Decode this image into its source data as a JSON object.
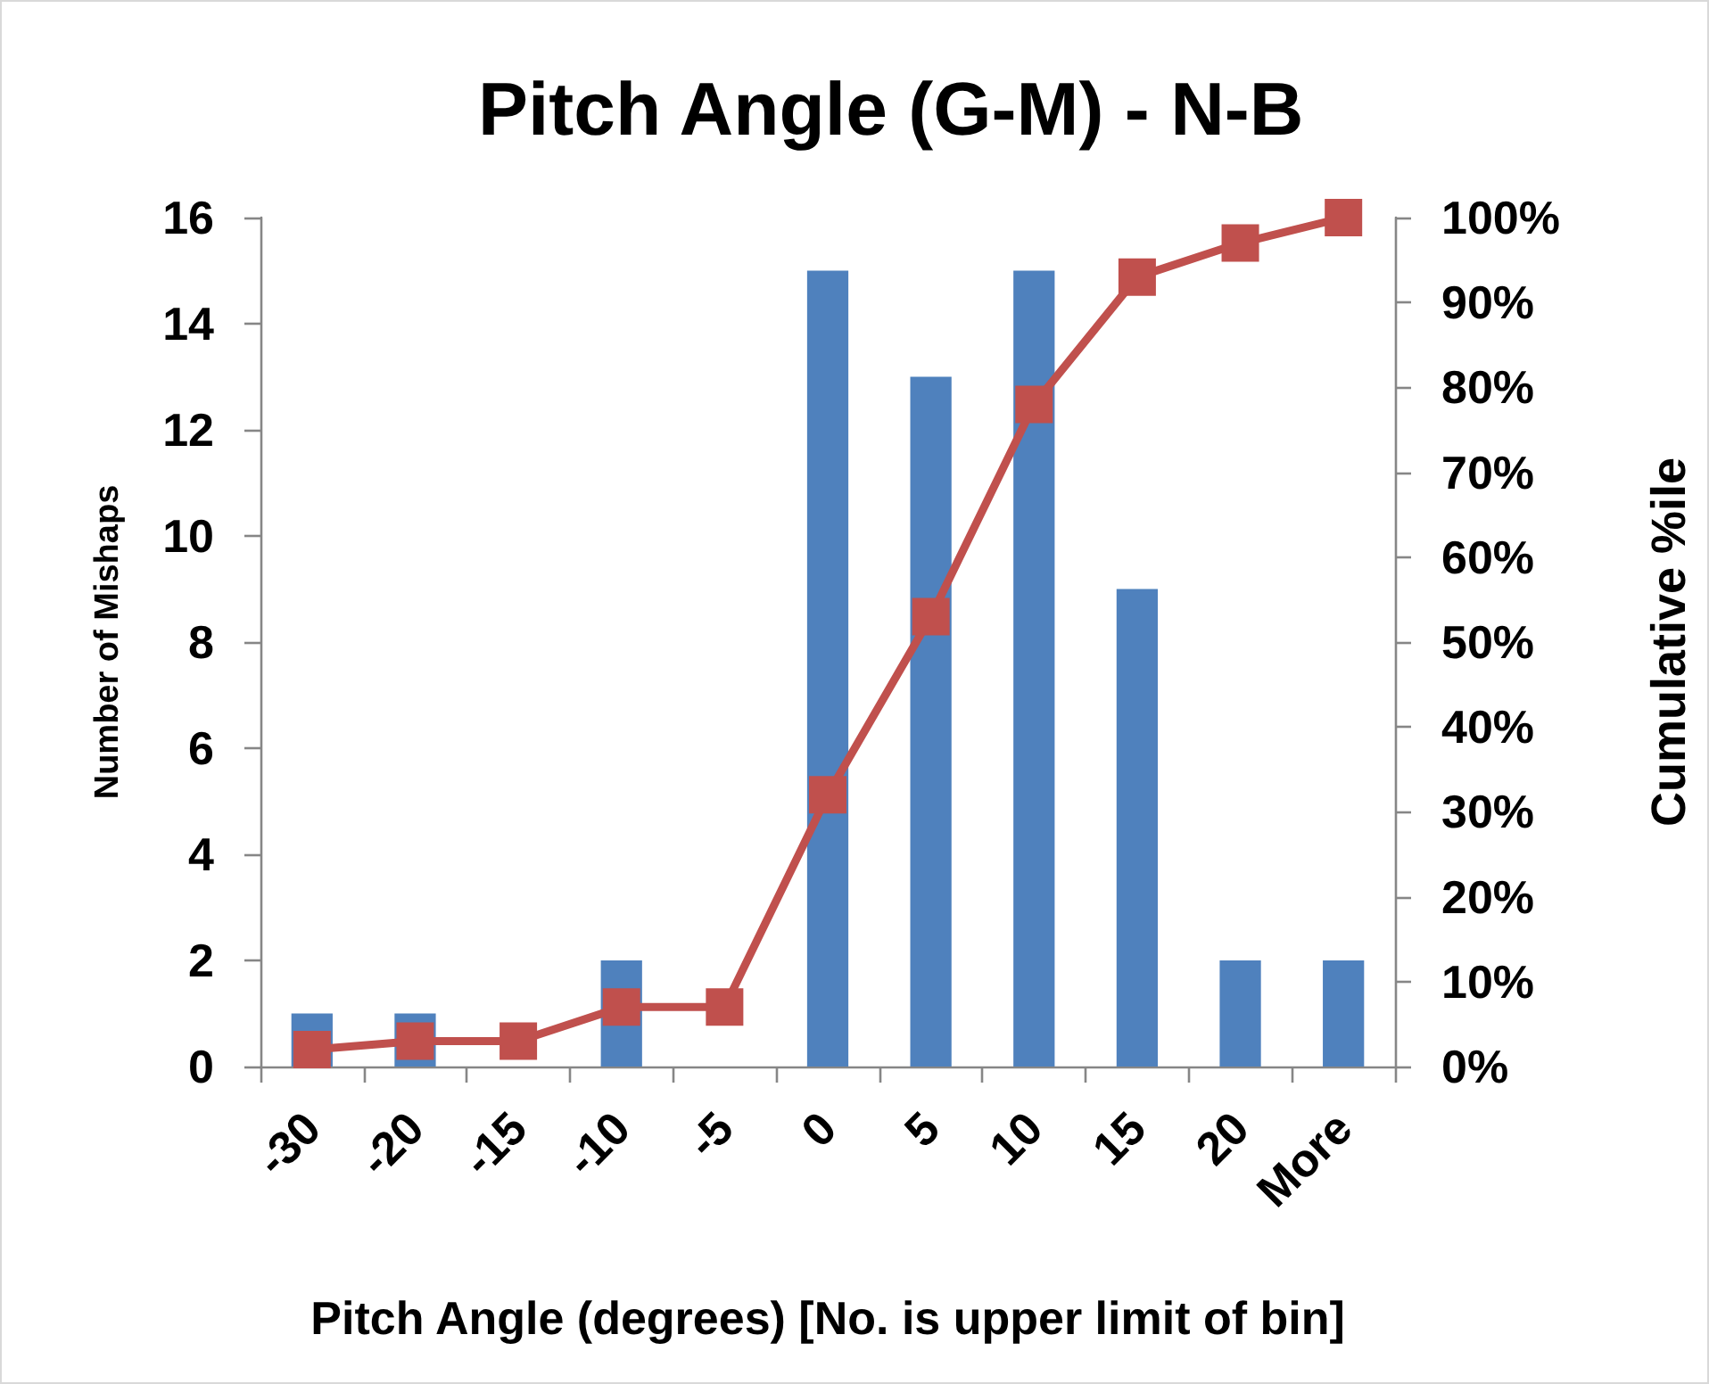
{
  "chart_data": {
    "type": "bar",
    "title": "Pitch Angle (G-M) - N-B",
    "xlabel": "Pitch Angle (degrees) [No. is upper limit of bin]",
    "ylabel": "Number of Mishaps",
    "y2label": "Cumulative %ile",
    "categories": [
      "-30",
      "-20",
      "-15",
      "-10",
      "-5",
      "0",
      "5",
      "10",
      "15",
      "20",
      "More"
    ],
    "series": [
      {
        "color": "#4f81bd",
        "values": [
          1,
          1,
          0,
          2,
          0,
          15,
          13,
          15,
          9,
          2,
          2
        ]
      },
      {
        "type": "line",
        "axis": "y2",
        "color": "#c0504d",
        "values": [
          2,
          3,
          3,
          7,
          7,
          32,
          53,
          78,
          93,
          97,
          100
        ]
      }
    ],
    "marker": "square",
    "line_style": "solid",
    "grid": false,
    "ylim": [
      0,
      16
    ],
    "yticks": [
      0,
      2,
      4,
      6,
      8,
      10,
      12,
      14,
      16
    ],
    "y2lim": [
      0,
      100
    ],
    "y2ticks": [
      {
        "value": 0,
        "label": "0%"
      },
      {
        "value": 10,
        "label": "10%"
      },
      {
        "value": 20,
        "label": "20%"
      },
      {
        "value": 30,
        "label": "30%"
      },
      {
        "value": 40,
        "label": "40%"
      },
      {
        "value": 50,
        "label": "50%"
      },
      {
        "value": 60,
        "label": "60%"
      },
      {
        "value": 70,
        "label": "70%"
      },
      {
        "value": 80,
        "label": "80%"
      },
      {
        "value": 90,
        "label": "90%"
      },
      {
        "value": 100,
        "label": "100%"
      }
    ]
  }
}
